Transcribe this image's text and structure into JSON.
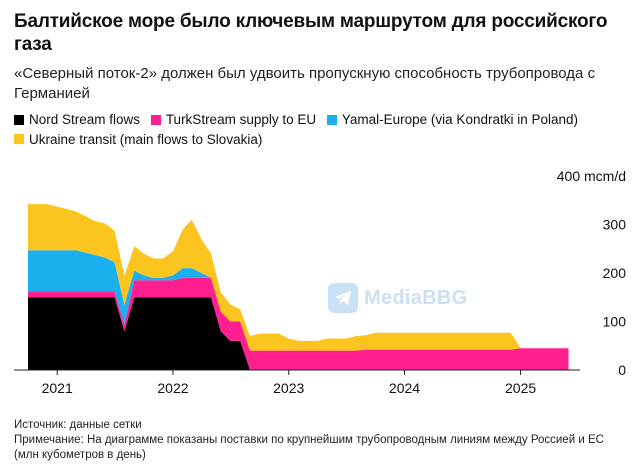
{
  "title": "Балтийское море было ключевым маршрутом для российского газа",
  "subtitle": "«Северный поток-2» должен был удвоить пропускную способность трубопровода с Германией",
  "watermark_text": "MediaBBG",
  "footer": {
    "source": "Источник: данные сетки",
    "note": "Примечание: На диаграмме показаны поставки по крупнейшим трубопроводным линиям между Россией и ЕС (млн кубометров в день)"
  },
  "chart_data": {
    "type": "area",
    "stacked": true,
    "unit_label": "400 mcm/d",
    "y_ticks": [
      "0",
      "100",
      "200",
      "300",
      "400 mcm/d"
    ],
    "y_tick_values": [
      0,
      100,
      200,
      300,
      400
    ],
    "ylim": [
      0,
      400
    ],
    "x_ticks": [
      "2021",
      "2022",
      "2023",
      "2024",
      "2025"
    ],
    "x_tick_values": [
      "2021-01-01",
      "2022-01-01",
      "2023-01-01",
      "2024-01-01",
      "2025-01-01"
    ],
    "xlim": [
      "2020-10-01",
      "2025-07-01"
    ],
    "grid": false,
    "legend_position": "top",
    "dates": [
      "2020-10-01",
      "2020-11-01",
      "2020-12-01",
      "2021-01-01",
      "2021-02-01",
      "2021-03-01",
      "2021-04-01",
      "2021-05-01",
      "2021-06-01",
      "2021-07-01",
      "2021-08-01",
      "2021-09-01",
      "2021-10-01",
      "2021-11-01",
      "2021-12-01",
      "2022-01-01",
      "2022-02-01",
      "2022-03-01",
      "2022-04-01",
      "2022-05-01",
      "2022-06-01",
      "2022-07-01",
      "2022-08-01",
      "2022-09-01",
      "2022-10-01",
      "2022-11-01",
      "2022-12-01",
      "2023-01-01",
      "2023-02-01",
      "2023-03-01",
      "2023-04-01",
      "2023-05-01",
      "2023-06-01",
      "2023-07-01",
      "2023-08-01",
      "2023-09-01",
      "2023-10-01",
      "2023-11-01",
      "2023-12-01",
      "2024-01-01",
      "2024-02-01",
      "2024-03-01",
      "2024-04-01",
      "2024-05-01",
      "2024-06-01",
      "2024-07-01",
      "2024-08-01",
      "2024-09-01",
      "2024-10-01",
      "2024-11-01",
      "2024-12-01",
      "2025-01-01",
      "2025-02-01",
      "2025-03-01",
      "2025-04-01",
      "2025-05-01",
      "2025-06-01"
    ],
    "series": [
      {
        "name": "Nord Stream flows",
        "color": "#000000",
        "values": [
          150,
          150,
          150,
          150,
          150,
          150,
          150,
          150,
          150,
          150,
          80,
          150,
          150,
          150,
          150,
          150,
          150,
          150,
          150,
          150,
          80,
          60,
          60,
          0,
          0,
          0,
          0,
          0,
          0,
          0,
          0,
          0,
          0,
          0,
          0,
          0,
          0,
          0,
          0,
          0,
          0,
          0,
          0,
          0,
          0,
          0,
          0,
          0,
          0,
          0,
          0,
          0,
          0,
          0,
          0,
          0,
          0
        ]
      },
      {
        "name": "TurkStream supply to EU",
        "color": "#ff1f8e",
        "values": [
          12,
          12,
          12,
          12,
          12,
          12,
          12,
          12,
          12,
          12,
          14,
          35,
          35,
          35,
          35,
          35,
          40,
          40,
          40,
          40,
          40,
          40,
          40,
          40,
          40,
          40,
          40,
          40,
          40,
          40,
          40,
          40,
          40,
          40,
          40,
          42,
          42,
          42,
          42,
          42,
          42,
          42,
          42,
          42,
          42,
          42,
          42,
          42,
          42,
          42,
          42,
          45,
          45,
          45,
          45,
          45,
          45
        ]
      },
      {
        "name": "Yamal-Europe (via Kondratki in Poland)",
        "color": "#1ab0f0",
        "values": [
          85,
          85,
          85,
          85,
          85,
          85,
          80,
          75,
          70,
          60,
          40,
          20,
          10,
          5,
          5,
          10,
          20,
          20,
          10,
          0,
          0,
          0,
          0,
          0,
          0,
          0,
          0,
          0,
          0,
          0,
          0,
          0,
          0,
          0,
          0,
          0,
          0,
          0,
          0,
          0,
          0,
          0,
          0,
          0,
          0,
          0,
          0,
          0,
          0,
          0,
          0,
          0,
          0,
          0,
          0,
          0,
          0
        ]
      },
      {
        "name": "Ukraine transit (main flows to Slovakia)",
        "color": "#fcc41f",
        "values": [
          95,
          95,
          95,
          90,
          85,
          80,
          75,
          70,
          70,
          65,
          60,
          50,
          45,
          40,
          40,
          50,
          80,
          100,
          70,
          50,
          40,
          35,
          25,
          30,
          35,
          35,
          35,
          25,
          20,
          20,
          20,
          25,
          25,
          25,
          30,
          30,
          35,
          35,
          35,
          35,
          35,
          35,
          35,
          35,
          35,
          35,
          35,
          35,
          35,
          35,
          35,
          0,
          0,
          0,
          0,
          0,
          0
        ]
      }
    ]
  }
}
